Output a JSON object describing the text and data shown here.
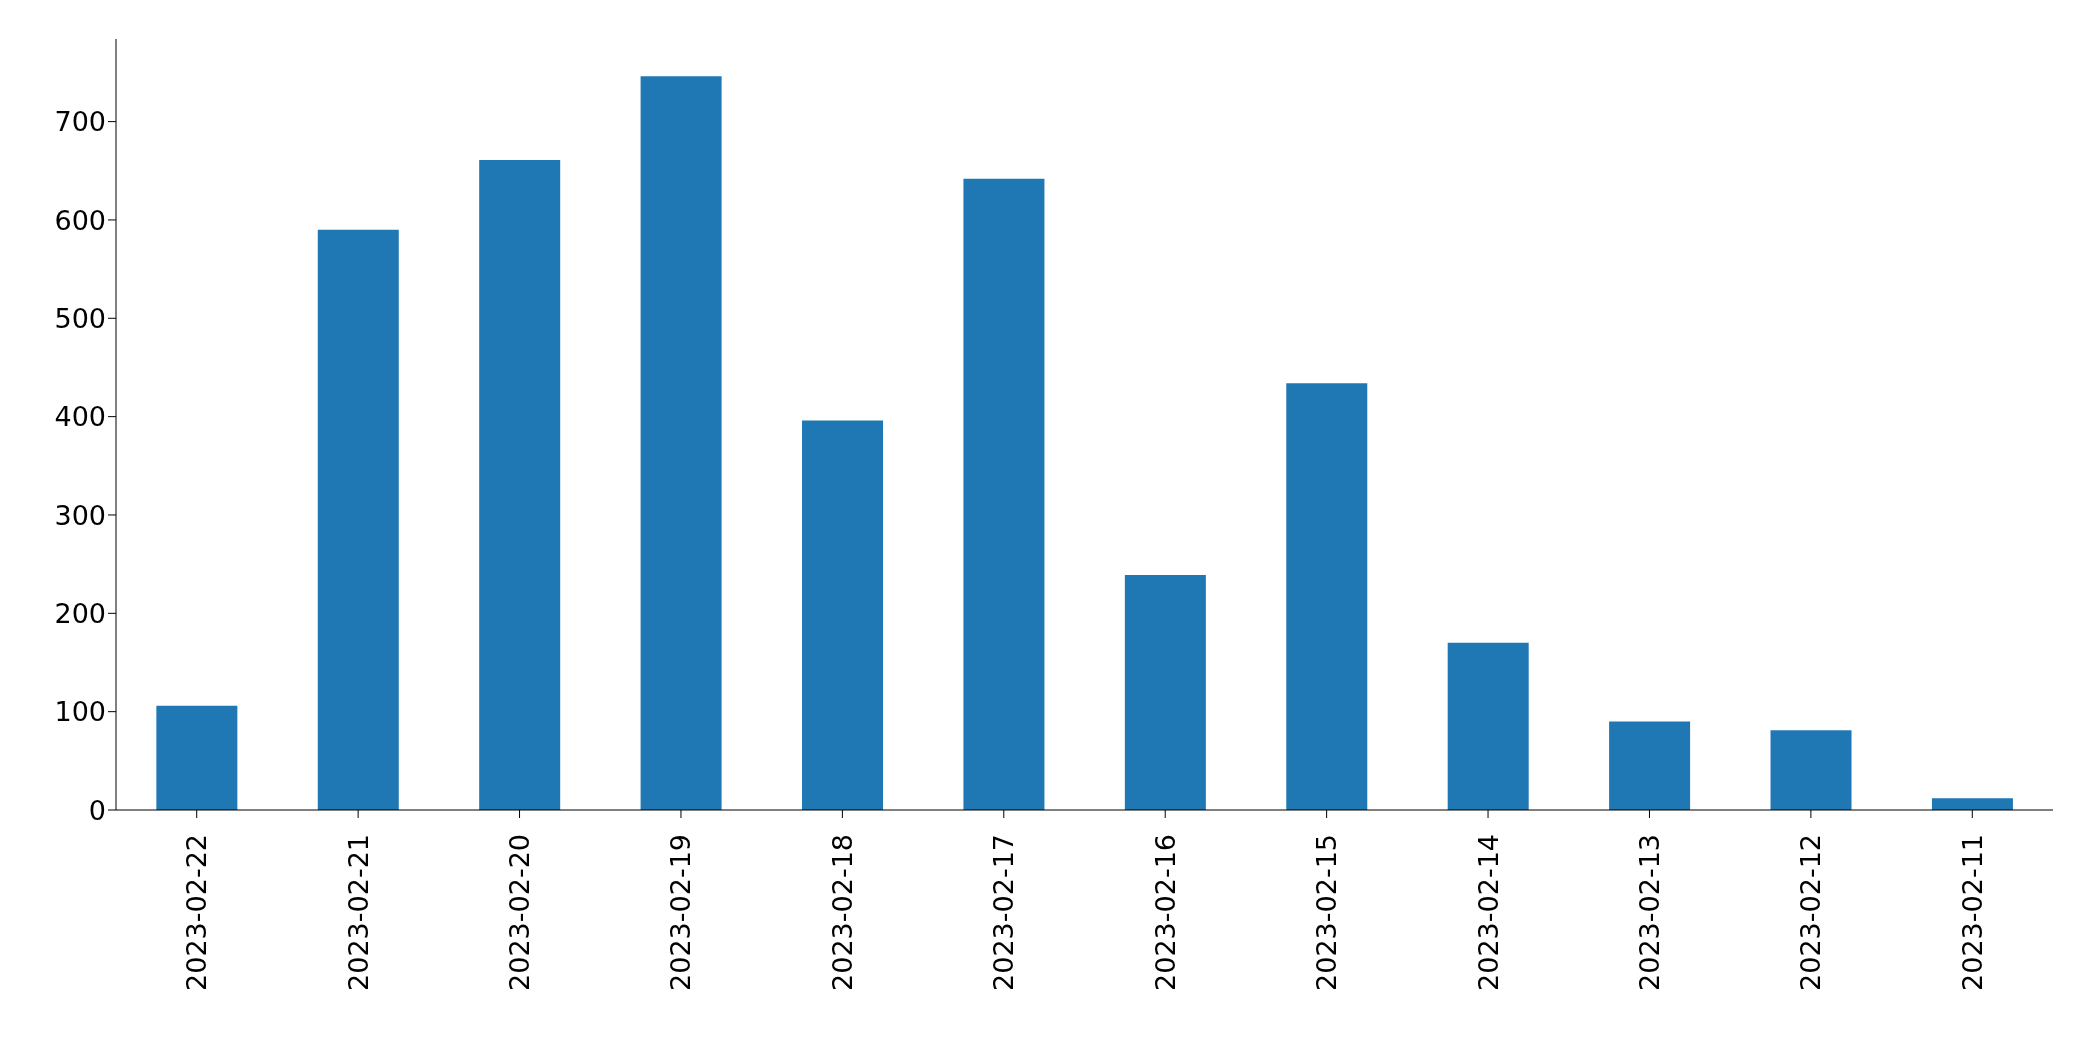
{
  "chart_data": {
    "type": "bar",
    "categories": [
      "2023-02-22",
      "2023-02-21",
      "2023-02-20",
      "2023-02-19",
      "2023-02-18",
      "2023-02-17",
      "2023-02-16",
      "2023-02-15",
      "2023-02-14",
      "2023-02-13",
      "2023-02-12",
      "2023-02-11"
    ],
    "values": [
      106,
      590,
      661,
      746,
      396,
      642,
      239,
      434,
      170,
      90,
      81,
      12
    ],
    "color": "#1f77b4",
    "ylim": [
      0,
      784
    ],
    "yticks": [
      0,
      100,
      200,
      300,
      400,
      500,
      600,
      700
    ],
    "grid": false,
    "legend": false
  }
}
